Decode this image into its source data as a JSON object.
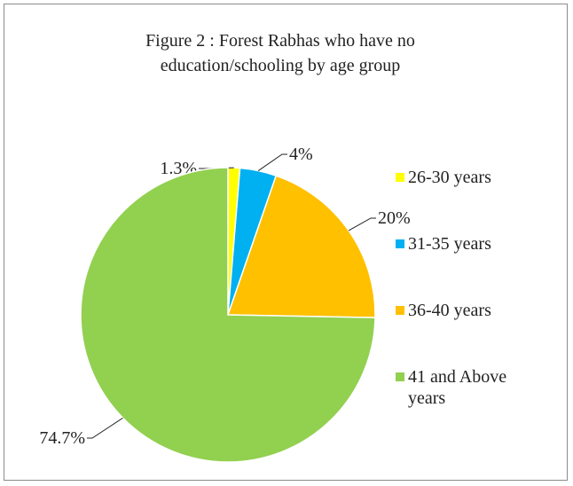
{
  "chart_data": {
    "type": "pie",
    "title": [
      "Figure 2 : Forest Rabhas who have no",
      "education/schooling by age group"
    ],
    "categories": [
      "26-30 years",
      "31-35 years",
      "36-40 years",
      "41 and Above years"
    ],
    "values": [
      1.3,
      4,
      20,
      74.7
    ],
    "value_labels": [
      "1.3%",
      "4%",
      "20%",
      "74.7%"
    ],
    "colors": [
      "#ffff00",
      "#00b0f0",
      "#ffc000",
      "#92d050"
    ],
    "legend": "right"
  }
}
